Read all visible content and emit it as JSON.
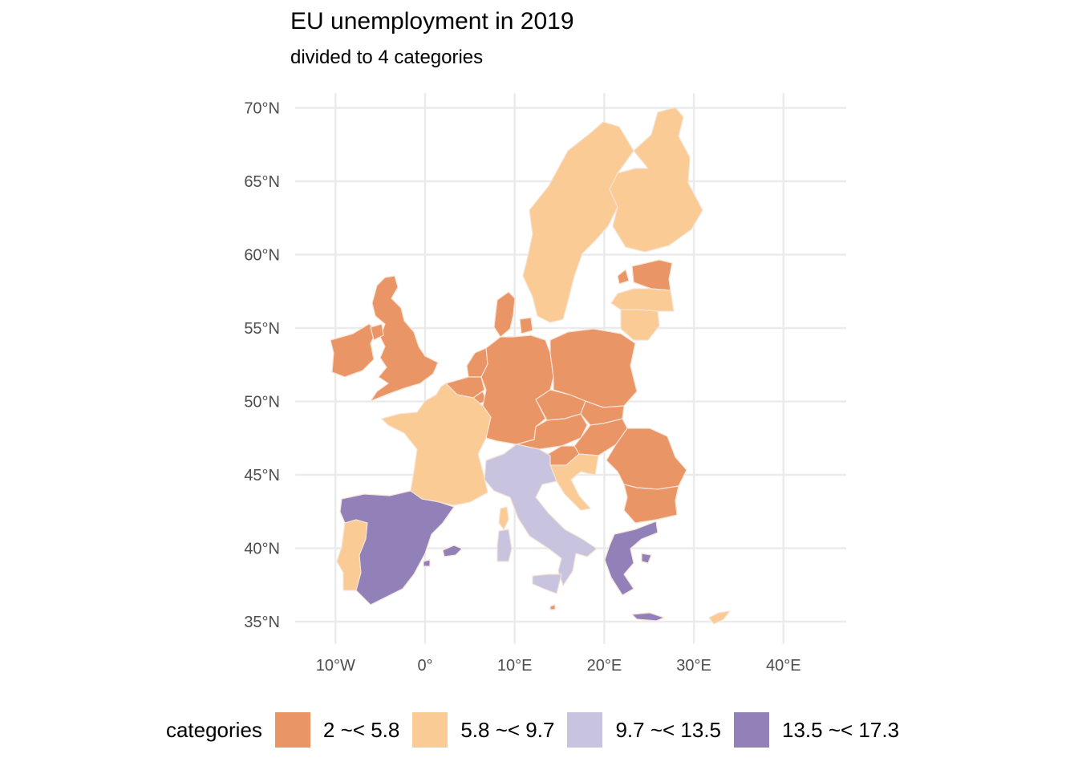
{
  "title": "EU unemployment in 2019",
  "subtitle": "divided to 4 categories",
  "axes": {
    "x_ticks": [
      {
        "lon": -10,
        "label": "10°W"
      },
      {
        "lon": 0,
        "label": "0°"
      },
      {
        "lon": 10,
        "label": "10°E"
      },
      {
        "lon": 20,
        "label": "20°E"
      },
      {
        "lon": 30,
        "label": "30°E"
      },
      {
        "lon": 40,
        "label": "40°E"
      }
    ],
    "y_ticks": [
      {
        "lat": 70,
        "label": "70°N"
      },
      {
        "lat": 65,
        "label": "65°N"
      },
      {
        "lat": 60,
        "label": "60°N"
      },
      {
        "lat": 55,
        "label": "55°N"
      },
      {
        "lat": 50,
        "label": "50°N"
      },
      {
        "lat": 45,
        "label": "45°N"
      },
      {
        "lat": 40,
        "label": "40°N"
      },
      {
        "lat": 35,
        "label": "35°N"
      }
    ],
    "lon_range": [
      -14.5,
      47
    ],
    "lat_range": [
      33.5,
      71
    ]
  },
  "legend": {
    "title": "categories",
    "placement": "bottom",
    "items": [
      {
        "id": "cat1",
        "label": "2 ~< 5.8",
        "color": "#ea9566"
      },
      {
        "id": "cat2",
        "label": "5.8 ~< 9.7",
        "color": "#facb94"
      },
      {
        "id": "cat3",
        "label": "9.7 ~< 13.5",
        "color": "#c8c3df"
      },
      {
        "id": "cat4",
        "label": "13.5 ~< 17.3",
        "color": "#9280b9"
      }
    ]
  },
  "colors": {
    "grid": "#ebebeb",
    "border": "#f5e3d6",
    "background": "#ffffff",
    "tick_text": "#4d4d4d"
  },
  "map": {
    "regions": [
      {
        "id": "ireland",
        "category": "cat1"
      },
      {
        "id": "united-kingdom",
        "category": "cat1"
      },
      {
        "id": "denmark",
        "category": "cat1"
      },
      {
        "id": "netherlands",
        "category": "cat1"
      },
      {
        "id": "belgium",
        "category": "cat1"
      },
      {
        "id": "luxembourg",
        "category": "cat1"
      },
      {
        "id": "germany",
        "category": "cat1"
      },
      {
        "id": "poland",
        "category": "cat1"
      },
      {
        "id": "czechia",
        "category": "cat1"
      },
      {
        "id": "slovakia",
        "category": "cat1"
      },
      {
        "id": "austria",
        "category": "cat1"
      },
      {
        "id": "hungary",
        "category": "cat1"
      },
      {
        "id": "slovenia",
        "category": "cat1"
      },
      {
        "id": "romania",
        "category": "cat1"
      },
      {
        "id": "bulgaria",
        "category": "cat1"
      },
      {
        "id": "estonia",
        "category": "cat1"
      },
      {
        "id": "malta",
        "category": "cat1"
      },
      {
        "id": "sweden",
        "category": "cat2"
      },
      {
        "id": "finland",
        "category": "cat2"
      },
      {
        "id": "latvia",
        "category": "cat2"
      },
      {
        "id": "lithuania",
        "category": "cat2"
      },
      {
        "id": "france",
        "category": "cat2"
      },
      {
        "id": "portugal",
        "category": "cat2"
      },
      {
        "id": "croatia",
        "category": "cat2"
      },
      {
        "id": "corsica",
        "category": "cat2"
      },
      {
        "id": "cyprus",
        "category": "cat2"
      },
      {
        "id": "italy",
        "category": "cat3"
      },
      {
        "id": "sardinia",
        "category": "cat3"
      },
      {
        "id": "sicily",
        "category": "cat3"
      },
      {
        "id": "spain",
        "category": "cat4"
      },
      {
        "id": "balearic-islands",
        "category": "cat4"
      },
      {
        "id": "greece",
        "category": "cat4"
      },
      {
        "id": "crete",
        "category": "cat4"
      }
    ]
  }
}
